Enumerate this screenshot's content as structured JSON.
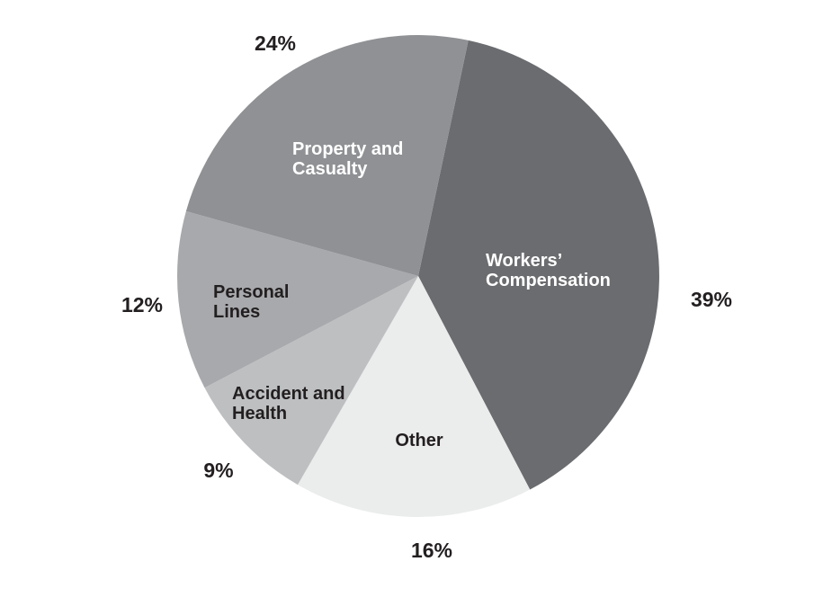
{
  "chart_data": {
    "type": "pie",
    "title": "",
    "legend": "none",
    "start_angle_deg": 12,
    "direction": "clockwise",
    "total": 100,
    "text_dark": "#231f20",
    "text_light": "#ffffff",
    "slices": [
      {
        "label": "Workers' Compensation",
        "value": 39,
        "pct_label": "39%",
        "color": "#6b6c6f",
        "text_color": "#ffffff",
        "label_lines": [
          "Workers’",
          "Compensation"
        ]
      },
      {
        "label": "Other",
        "value": 16,
        "pct_label": "16%",
        "color": "#ebecec",
        "text_color": "#231f20",
        "label_lines": [
          "Other"
        ]
      },
      {
        "label": "Accident and Health",
        "value": 9,
        "pct_label": "9%",
        "color": "#bdbfc1",
        "text_color": "#231f20",
        "label_lines": [
          "Accident and",
          "Health"
        ]
      },
      {
        "label": "Personal Lines",
        "value": 12,
        "pct_label": "12%",
        "color": "#a7a9ac",
        "text_color": "#231f20",
        "label_lines": [
          "Personal",
          "Lines"
        ]
      },
      {
        "label": "Property and Casualty",
        "value": 24,
        "pct_label": "24%",
        "color": "#8f9194",
        "text_color": "#ffffff",
        "label_lines": [
          "Property and",
          "Casualty"
        ]
      }
    ]
  }
}
